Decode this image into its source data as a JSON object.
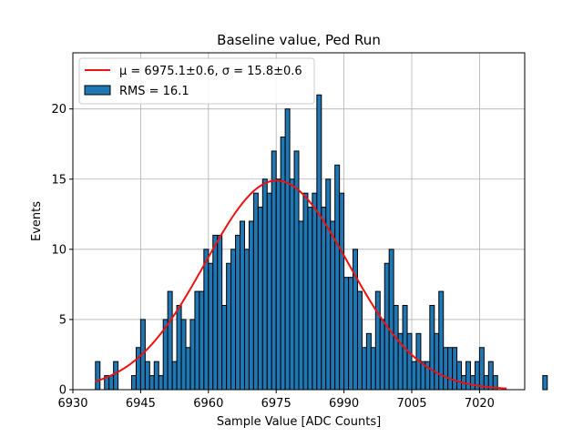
{
  "chart_data": {
    "type": "bar",
    "title": "Baseline value, Ped Run",
    "xlabel": "Sample Value [ADC Counts]",
    "ylabel": "Events",
    "xlim": [
      6930,
      7030
    ],
    "ylim": [
      0,
      24
    ],
    "xticks": [
      6930,
      6945,
      6960,
      6975,
      6990,
      7005,
      7020
    ],
    "yticks": [
      0,
      5,
      10,
      15,
      20
    ],
    "grid": true,
    "legend_position": "top-left",
    "bin_start": 6935,
    "bin_width": 1,
    "histogram_values": [
      2,
      0,
      1,
      1,
      2,
      0,
      0,
      0,
      1,
      3,
      5,
      2,
      1,
      2,
      1,
      5,
      7,
      2,
      6,
      5,
      3,
      5,
      7,
      7,
      10,
      9,
      11,
      11,
      6,
      9,
      10,
      11,
      12,
      10,
      12,
      14,
      13,
      15,
      14,
      17,
      15,
      18,
      20,
      15,
      17,
      12,
      14,
      13,
      14,
      21,
      13,
      15,
      12,
      16,
      14,
      8,
      8,
      10,
      7,
      3,
      4,
      3,
      7,
      5,
      9,
      10,
      6,
      4,
      6,
      4,
      2,
      4,
      2,
      2,
      6,
      4,
      7,
      3,
      3,
      3,
      2,
      1,
      2,
      1,
      2,
      3,
      1,
      2,
      1,
      0,
      0,
      0,
      0,
      0,
      0,
      0,
      0,
      0,
      0,
      1
    ],
    "fit": {
      "name": "Gaussian fit",
      "color": "#ee1111",
      "mu": 6975.1,
      "sigma": 15.8,
      "amplitude": 14.9,
      "x_range": [
        6935,
        7026
      ]
    },
    "legend": [
      {
        "label": "μ = 6975.1±0.6, σ = 15.8±0.6",
        "type": "line",
        "color": "#ee1111"
      },
      {
        "label": "RMS = 16.1",
        "type": "patch",
        "color": "#1f77b4"
      }
    ],
    "bar_color": "#1f77b4",
    "bar_edge_color": "#000000"
  }
}
